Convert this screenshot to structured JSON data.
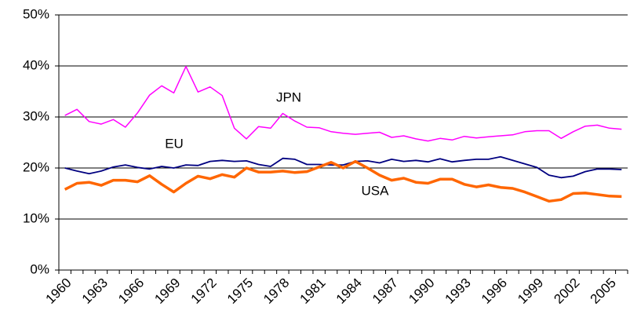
{
  "chart_data": {
    "type": "line",
    "categories": [
      "1960",
      null,
      null,
      "1963",
      null,
      null,
      "1966",
      null,
      null,
      "1969",
      null,
      null,
      "1972",
      null,
      null,
      "1975",
      null,
      null,
      "1978",
      null,
      null,
      "1981",
      null,
      null,
      "1984",
      null,
      null,
      "1987",
      null,
      null,
      "1990",
      null,
      null,
      "1993",
      null,
      null,
      "1996",
      null,
      null,
      "1999",
      null,
      null,
      "2002",
      null,
      null,
      "2005",
      null
    ],
    "series": [
      {
        "name": "JPN",
        "color": "#ff00ff",
        "values": [
          30.3,
          31.5,
          29.1,
          28.6,
          29.5,
          28.0,
          30.8,
          34.3,
          36.1,
          34.7,
          39.9,
          34.9,
          35.9,
          34.2,
          27.8,
          25.7,
          28.1,
          27.8,
          30.7,
          29.2,
          28.0,
          27.9,
          27.1,
          26.8,
          26.6,
          26.8,
          27.0,
          26.0,
          26.3,
          25.7,
          25.3,
          25.8,
          25.5,
          26.2,
          25.9,
          26.1,
          26.3,
          26.5,
          27.1,
          27.3,
          27.3,
          25.8,
          27.1,
          28.2,
          28.4,
          27.8,
          27.6
        ]
      },
      {
        "name": "EU",
        "color": "#000080",
        "values": [
          20.0,
          19.4,
          18.9,
          19.4,
          20.2,
          20.6,
          20.1,
          19.8,
          20.3,
          20.0,
          20.6,
          20.5,
          21.3,
          21.5,
          21.3,
          21.4,
          20.7,
          20.3,
          21.9,
          21.7,
          20.7,
          20.7,
          20.6,
          20.6,
          21.3,
          21.4,
          21.0,
          21.7,
          21.3,
          21.5,
          21.2,
          21.8,
          21.2,
          21.5,
          21.7,
          21.7,
          22.2,
          21.5,
          20.8,
          20.1,
          18.6,
          18.1,
          18.4,
          19.3,
          19.8,
          19.8,
          19.7
        ]
      },
      {
        "name": "USA",
        "color": "#ff6600",
        "values": [
          15.8,
          17.0,
          17.2,
          16.6,
          17.6,
          17.6,
          17.3,
          18.5,
          16.8,
          15.3,
          17.0,
          18.4,
          17.9,
          18.7,
          18.2,
          20.0,
          19.2,
          19.2,
          19.4,
          19.1,
          19.3,
          20.2,
          21.1,
          20.0,
          21.3,
          20.0,
          18.6,
          17.6,
          18.0,
          17.2,
          17.0,
          17.8,
          17.8,
          16.8,
          16.3,
          16.7,
          16.2,
          16.0,
          15.3,
          14.4,
          13.5,
          13.8,
          15.0,
          15.1,
          14.8,
          14.5,
          14.4
        ]
      }
    ],
    "ylim": [
      0,
      50
    ],
    "yticks": [
      {
        "value": 0,
        "label": "0%"
      },
      {
        "value": 10,
        "label": "10%"
      },
      {
        "value": 20,
        "label": "20%"
      },
      {
        "value": 30,
        "label": "30%"
      },
      {
        "value": 40,
        "label": "40%"
      },
      {
        "value": 50,
        "label": "50%"
      }
    ],
    "grid": true
  }
}
